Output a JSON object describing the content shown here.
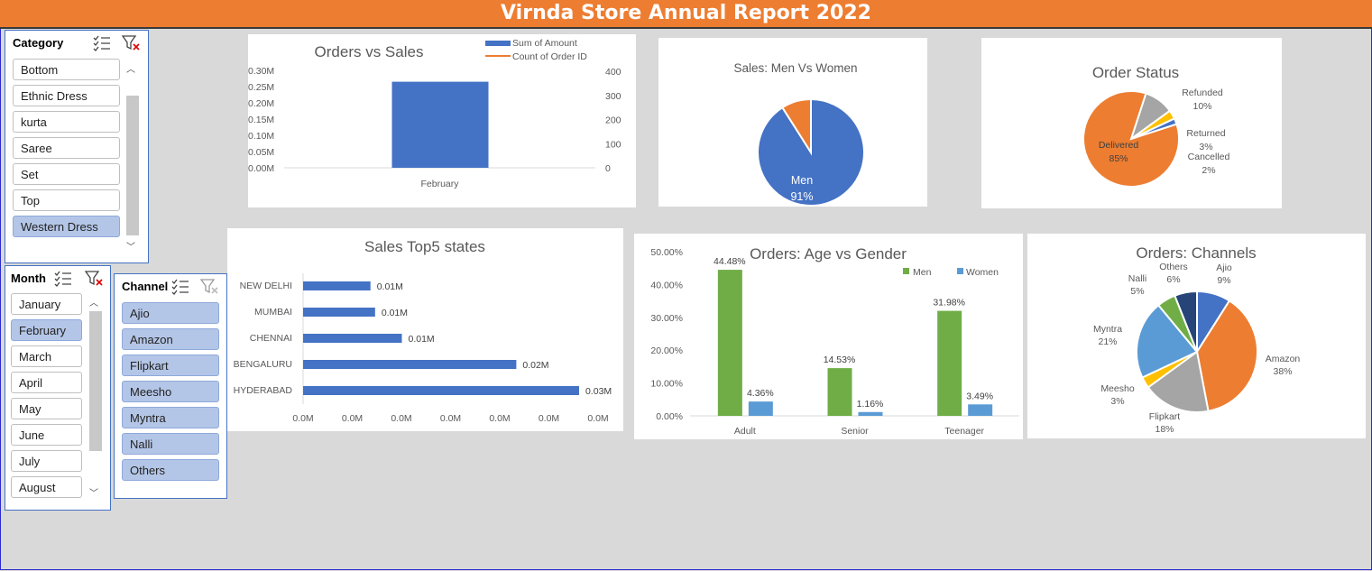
{
  "title": "Virnda Store Annual Report 2022",
  "slicers": {
    "category": {
      "label": "Category",
      "items": [
        "Bottom",
        "Ethnic Dress",
        "kurta",
        "Saree",
        "Set",
        "Top",
        "Western Dress"
      ],
      "selected": [
        "Western Dress"
      ]
    },
    "month": {
      "label": "Month",
      "items": [
        "January",
        "February",
        "March",
        "April",
        "May",
        "June",
        "July",
        "August"
      ],
      "selected": [
        "February"
      ]
    },
    "channel": {
      "label": "Channel",
      "items": [
        "Ajio",
        "Amazon",
        "Flipkart",
        "Meesho",
        "Myntra",
        "Nalli",
        "Others"
      ],
      "selected": [
        "Ajio",
        "Amazon",
        "Flipkart",
        "Meesho",
        "Myntra",
        "Nalli",
        "Others"
      ]
    }
  },
  "colors": {
    "blue": "#4472c4",
    "orange": "#ed7d31",
    "green": "#70ad47",
    "lightblue": "#5b9bd5",
    "gray": "#a5a5a5",
    "gold": "#ffc000",
    "navy": "#264478"
  },
  "chart_data": [
    {
      "id": "orders_vs_sales",
      "type": "bar",
      "title": "Orders vs Sales",
      "categories": [
        "February"
      ],
      "series": [
        {
          "name": "Sum of Amount",
          "values": [
            0.265
          ],
          "axis": "left"
        },
        {
          "name": "Count of Order ID",
          "values": [
            null
          ],
          "axis": "right"
        }
      ],
      "yticks_left": [
        "0.00M",
        "0.05M",
        "0.10M",
        "0.15M",
        "0.20M",
        "0.25M",
        "0.30M"
      ],
      "yticks_right": [
        "0",
        "100",
        "200",
        "300",
        "400"
      ],
      "ylim": [
        0,
        0.3
      ],
      "legend": "top-right"
    },
    {
      "id": "sales_men_women",
      "type": "pie",
      "title": "Sales: Men Vs Women",
      "slices": [
        {
          "label": "Men",
          "pct": "91%",
          "value": 91
        },
        {
          "label": "",
          "pct": "",
          "value": 9
        }
      ]
    },
    {
      "id": "order_status",
      "type": "pie",
      "title": "Order Status",
      "slices": [
        {
          "label": "Delivered",
          "pct": "85%",
          "value": 85
        },
        {
          "label": "Refunded",
          "pct": "10%",
          "value": 10
        },
        {
          "label": "Returned",
          "pct": "3%",
          "value": 3
        },
        {
          "label": "Cancelled",
          "pct": "2%",
          "value": 2
        }
      ]
    },
    {
      "id": "sales_top5",
      "type": "bar",
      "orientation": "horizontal",
      "title": "Sales Top5 states",
      "categories": [
        "NEW DELHI",
        "MUMBAI",
        "CHENNAI",
        "BENGALURU",
        "HYDERABAD"
      ],
      "values": [
        0.0073,
        0.0078,
        0.0107,
        0.0231,
        0.0299
      ],
      "data_labels": [
        "0.01M",
        "0.01M",
        "0.01M",
        "0.02M",
        "0.03M"
      ],
      "xticks": [
        "0.0M",
        "0.0M",
        "0.0M",
        "0.0M",
        "0.0M",
        "0.0M",
        "0.0M"
      ],
      "xlim": [
        0,
        0.03
      ]
    },
    {
      "id": "age_vs_gender",
      "type": "bar",
      "title": "Orders: Age vs Gender",
      "categories": [
        "Adult",
        "Senior",
        "Teenager"
      ],
      "series": [
        {
          "name": "Men",
          "values": [
            44.48,
            14.53,
            31.98
          ],
          "labels": [
            "44.48%",
            "14.53%",
            "31.98%"
          ]
        },
        {
          "name": "Women",
          "values": [
            4.36,
            1.16,
            3.49
          ],
          "labels": [
            "4.36%",
            "1.16%",
            "3.49%"
          ]
        }
      ],
      "yticks": [
        "0.00%",
        "10.00%",
        "20.00%",
        "30.00%",
        "40.00%",
        "50.00%"
      ],
      "ylim": [
        0,
        50
      ],
      "legend": "top-right"
    },
    {
      "id": "channels",
      "type": "pie",
      "title": "Orders: Channels",
      "slices": [
        {
          "label": "Ajio",
          "pct": "9%",
          "value": 9
        },
        {
          "label": "Amazon",
          "pct": "38%",
          "value": 38
        },
        {
          "label": "Flipkart",
          "pct": "18%",
          "value": 18
        },
        {
          "label": "Meesho",
          "pct": "3%",
          "value": 3
        },
        {
          "label": "Myntra",
          "pct": "21%",
          "value": 21
        },
        {
          "label": "Nalli",
          "pct": "5%",
          "value": 5
        },
        {
          "label": "Others",
          "pct": "6%",
          "value": 6
        }
      ]
    }
  ]
}
